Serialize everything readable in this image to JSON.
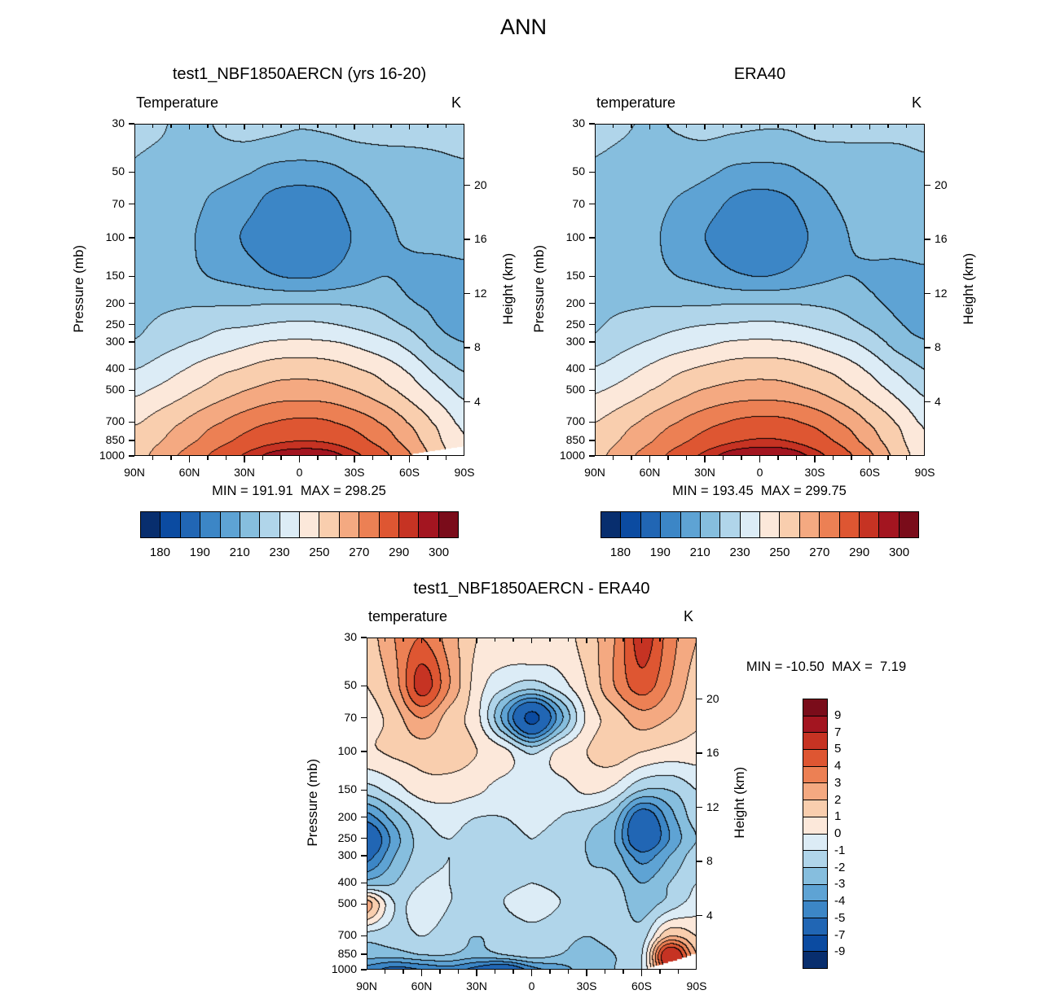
{
  "title": "ANN",
  "colors": {
    "background": "#ffffff",
    "contour_line": "#000000",
    "frame": "#000000",
    "palette": [
      "#082e6e",
      "#0b4ba1",
      "#2166b4",
      "#3c86c6",
      "#5ea3d4",
      "#86bede",
      "#b0d5ea",
      "#dcecf6",
      "#fce8da",
      "#f9ceae",
      "#f4a981",
      "#ec8054",
      "#de5632",
      "#c63323",
      "#a31520",
      "#7a0c1a"
    ]
  },
  "chart_data": [
    {
      "id": "model",
      "type": "heatmap",
      "title": "test1_NBF1850AERCN (yrs 16-20)",
      "field_label": "Temperature",
      "units": "K",
      "stats": "MIN = 191.91  MAX = 298.25",
      "x_tick_labels": [
        "90N",
        "60N",
        "30N",
        "0",
        "30S",
        "60S",
        "90S"
      ],
      "y_axis_label": "Pressure (mb)",
      "y_ticks": [
        30,
        50,
        70,
        100,
        150,
        200,
        250,
        300,
        400,
        500,
        700,
        850,
        1000
      ],
      "y2_axis_label": "Height (km)",
      "y2_ticks": [
        20,
        16,
        12,
        8,
        4
      ],
      "levels": [
        180,
        185,
        190,
        200,
        210,
        220,
        230,
        240,
        250,
        260,
        270,
        280,
        290,
        295,
        300
      ],
      "colorbar_labels": [
        "180",
        "190",
        "210",
        "230",
        "250",
        "270",
        "290",
        "300"
      ],
      "grid_lats": [
        90,
        75,
        60,
        45,
        30,
        15,
        0,
        -15,
        -30,
        -45,
        -60,
        -75,
        -90
      ],
      "grid_pressures": [
        30,
        50,
        70,
        100,
        150,
        200,
        250,
        300,
        400,
        500,
        700,
        850,
        1000
      ],
      "grid": [
        [
          222,
          221,
          215,
          221,
          224,
          223,
          221,
          222,
          224,
          224,
          223,
          222,
          222
        ],
        [
          219,
          216,
          212,
          213,
          211,
          207,
          206,
          207,
          211,
          214,
          216,
          218,
          219
        ],
        [
          216,
          214,
          212,
          208,
          204,
          196,
          193,
          196,
          205,
          210,
          212,
          214,
          215
        ],
        [
          215,
          214,
          211,
          205,
          199,
          193,
          192,
          194,
          201,
          208,
          211,
          213,
          214
        ],
        [
          215,
          214,
          212,
          209,
          206,
          201,
          199,
          201,
          206,
          210,
          208,
          206,
          207
        ],
        [
          216,
          218,
          219,
          219,
          219,
          220,
          220,
          220,
          219,
          217,
          211,
          208,
          206
        ],
        [
          218,
          222,
          225,
          228,
          229,
          231,
          232,
          231,
          228,
          224,
          218,
          210,
          207
        ],
        [
          221,
          226,
          230,
          234,
          238,
          241,
          242,
          241,
          238,
          233,
          226,
          215,
          210
        ],
        [
          230,
          235,
          241,
          247,
          251,
          255,
          256,
          255,
          251,
          246,
          238,
          227,
          219
        ],
        [
          238,
          243,
          249,
          255,
          260,
          264,
          265,
          264,
          260,
          254,
          246,
          236,
          227
        ],
        [
          249,
          255,
          262,
          269,
          275,
          280,
          282,
          281,
          276,
          269,
          259,
          248,
          237
        ],
        [
          253,
          260,
          268,
          276,
          283,
          288,
          290,
          289,
          284,
          276,
          265,
          252,
          241
        ],
        [
          256,
          265,
          274,
          283,
          291,
          297,
          299,
          298,
          292,
          283,
          271,
          255,
          244
        ]
      ]
    },
    {
      "id": "era",
      "type": "heatmap",
      "title": "ERA40",
      "field_label": "temperature",
      "units": "K",
      "stats": "MIN = 193.45  MAX = 299.75",
      "x_tick_labels": [
        "90N",
        "60N",
        "30N",
        "0",
        "30S",
        "60S",
        "90S"
      ],
      "y_axis_label": "Pressure (mb)",
      "y_ticks": [
        30,
        50,
        70,
        100,
        150,
        200,
        250,
        300,
        400,
        500,
        700,
        850,
        1000
      ],
      "y2_axis_label": "Height (km)",
      "y2_ticks": [
        20,
        16,
        12,
        8,
        4
      ],
      "levels": [
        180,
        185,
        190,
        200,
        210,
        220,
        230,
        240,
        250,
        260,
        270,
        280,
        290,
        295,
        300
      ],
      "colorbar_labels": [
        "180",
        "190",
        "210",
        "230",
        "250",
        "270",
        "290",
        "300"
      ],
      "grid_lats": [
        90,
        75,
        60,
        45,
        30,
        15,
        0,
        -15,
        -30,
        -45,
        -60,
        -75,
        -90
      ],
      "grid_pressures": [
        30,
        50,
        70,
        100,
        150,
        200,
        250,
        300,
        400,
        500,
        700,
        850,
        1000
      ],
      "grid": [
        [
          222,
          221,
          219,
          221,
          223,
          222,
          221,
          221,
          223,
          223,
          222,
          221,
          221
        ],
        [
          219,
          217,
          214,
          214,
          212,
          208,
          207,
          208,
          212,
          214,
          216,
          218,
          219
        ],
        [
          217,
          215,
          213,
          209,
          205,
          198,
          195,
          198,
          206,
          211,
          213,
          215,
          216
        ],
        [
          216,
          215,
          212,
          206,
          200,
          194,
          193,
          195,
          202,
          209,
          212,
          214,
          215
        ],
        [
          215,
          214,
          213,
          210,
          207,
          202,
          200,
          202,
          207,
          210,
          209,
          207,
          208
        ],
        [
          217,
          218,
          219,
          219,
          219,
          220,
          220,
          220,
          219,
          217,
          212,
          208,
          206
        ],
        [
          219,
          223,
          226,
          228,
          230,
          231,
          232,
          231,
          228,
          224,
          218,
          211,
          207
        ],
        [
          222,
          227,
          231,
          235,
          238,
          241,
          242,
          241,
          238,
          233,
          226,
          216,
          211
        ],
        [
          231,
          236,
          242,
          248,
          252,
          255,
          256,
          255,
          251,
          246,
          238,
          228,
          220
        ],
        [
          239,
          244,
          250,
          256,
          261,
          264,
          265,
          264,
          260,
          254,
          246,
          237,
          228
        ],
        [
          250,
          256,
          263,
          270,
          276,
          281,
          283,
          282,
          277,
          269,
          259,
          249,
          238
        ],
        [
          254,
          261,
          269,
          277,
          284,
          289,
          291,
          290,
          285,
          277,
          265,
          253,
          242
        ],
        [
          257,
          266,
          275,
          284,
          292,
          298,
          300,
          299,
          293,
          284,
          272,
          256,
          245
        ]
      ]
    },
    {
      "id": "diff",
      "type": "heatmap",
      "title": "test1_NBF1850AERCN - ERA40",
      "field_label": "temperature",
      "units": "K",
      "stats": "MIN = -10.50  MAX =  7.19",
      "x_tick_labels": [
        "90N",
        "60N",
        "30N",
        "0",
        "30S",
        "60S",
        "90S"
      ],
      "y_axis_label": "Pressure (mb)",
      "y_ticks": [
        30,
        50,
        70,
        100,
        150,
        200,
        250,
        300,
        400,
        500,
        700,
        850,
        1000
      ],
      "y2_axis_label": "Height (km)",
      "y2_ticks": [
        20,
        16,
        12,
        8,
        4
      ],
      "levels": [
        -9,
        -7,
        -5,
        -4,
        -3,
        -2,
        -1,
        0,
        1,
        2,
        3,
        4,
        5,
        7,
        9
      ],
      "colorbar_labels": [
        "9",
        "7",
        "5",
        "4",
        "3",
        "2",
        "1",
        "0",
        "-1",
        "-2",
        "-3",
        "-4",
        "-5",
        "-7",
        "-9"
      ],
      "grid_lats": [
        90,
        75,
        60,
        45,
        30,
        15,
        0,
        -15,
        -30,
        -45,
        -60,
        -75,
        -90
      ],
      "grid_pressures": [
        30,
        50,
        70,
        100,
        150,
        200,
        250,
        300,
        400,
        500,
        700,
        850,
        1000
      ],
      "grid": [
        [
          1.5,
          3,
          4,
          2.5,
          1,
          0.8,
          1,
          0.6,
          1.5,
          3,
          5.5,
          3.5,
          2
        ],
        [
          1,
          2.5,
          5.5,
          3,
          0.5,
          -0.8,
          -1.5,
          -0.5,
          1,
          3,
          4.5,
          3,
          1.5
        ],
        [
          0.5,
          1.5,
          3,
          1.5,
          0.3,
          -3.5,
          -7.5,
          -3.5,
          0.2,
          1.5,
          2.5,
          2,
          1.2
        ],
        [
          0.8,
          1.2,
          1.5,
          1.5,
          1,
          0.3,
          -1.2,
          0.3,
          1,
          1.5,
          1,
          0.6,
          0.5
        ],
        [
          -1.5,
          -0.5,
          0.5,
          0.5,
          0.2,
          -0.5,
          -0.6,
          -0.5,
          0.2,
          -0.3,
          -2,
          -2,
          -1
        ],
        [
          -4.5,
          -2.5,
          -1,
          -0.5,
          -1,
          -1,
          -0.6,
          -1,
          -1.5,
          -2.5,
          -6,
          -3.5,
          -1.5
        ],
        [
          -6.5,
          -3.5,
          -1.5,
          -1,
          -1.5,
          -1.5,
          -1,
          -1.5,
          -2,
          -3,
          -6.5,
          -4,
          -2
        ],
        [
          -5.5,
          -3,
          -1.5,
          -1,
          -1.5,
          -1.5,
          -1,
          -1.5,
          -2,
          -2.5,
          -4.5,
          -3,
          -1.5
        ],
        [
          -2.5,
          -2,
          -1,
          -1,
          -1.5,
          -1.2,
          -1,
          -1.2,
          -1.8,
          -1.8,
          -3,
          -2,
          -1
        ],
        [
          2.5,
          -1,
          -0.5,
          -1,
          -1.5,
          -1,
          -0.8,
          -1,
          -1.5,
          -1.5,
          -2.5,
          -1.5,
          -0.5
        ],
        [
          -1.5,
          -1.5,
          -1,
          -1.5,
          -2,
          -1.5,
          -1.2,
          -1.5,
          -2,
          -1.5,
          -1.5,
          2,
          1
        ],
        [
          -2.5,
          -2.5,
          -2,
          -2,
          -2.5,
          -2,
          -1.5,
          -2,
          -2.5,
          -2,
          -1,
          6.5,
          2
        ],
        [
          -4.5,
          -5.5,
          -5,
          -4.5,
          -5.5,
          -6.5,
          -4.5,
          -3.5,
          -2.5,
          -2,
          -1,
          5.5,
          3
        ]
      ]
    }
  ]
}
